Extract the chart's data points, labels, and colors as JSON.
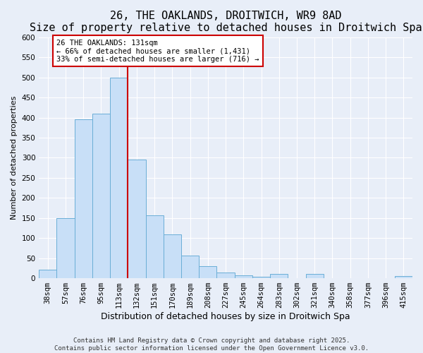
{
  "title": "26, THE OAKLANDS, DROITWICH, WR9 8AD",
  "subtitle": "Size of property relative to detached houses in Droitwich Spa",
  "xlabel": "Distribution of detached houses by size in Droitwich Spa",
  "ylabel": "Number of detached properties",
  "bar_labels": [
    "38sqm",
    "57sqm",
    "76sqm",
    "95sqm",
    "113sqm",
    "132sqm",
    "151sqm",
    "170sqm",
    "189sqm",
    "208sqm",
    "227sqm",
    "245sqm",
    "264sqm",
    "283sqm",
    "302sqm",
    "321sqm",
    "340sqm",
    "358sqm",
    "377sqm",
    "396sqm",
    "415sqm"
  ],
  "bar_values": [
    22,
    150,
    395,
    410,
    500,
    295,
    157,
    110,
    56,
    30,
    15,
    8,
    3,
    10,
    0,
    10,
    0,
    0,
    0,
    0,
    5
  ],
  "bar_color": "#c8dff7",
  "bar_edge_color": "#6aaed6",
  "vline_index": 4,
  "vline_color": "#cc0000",
  "annotation_title": "26 THE OAKLANDS: 131sqm",
  "annotation_line1": "← 66% of detached houses are smaller (1,431)",
  "annotation_line2": "33% of semi-detached houses are larger (716) →",
  "annotation_box_color": "#ffffff",
  "annotation_box_edge": "#cc0000",
  "ylim": [
    0,
    600
  ],
  "yticks": [
    0,
    50,
    100,
    150,
    200,
    250,
    300,
    350,
    400,
    450,
    500,
    550,
    600
  ],
  "background_color": "#e8eef8",
  "grid_color": "#ffffff",
  "footer_line1": "Contains HM Land Registry data © Crown copyright and database right 2025.",
  "footer_line2": "Contains public sector information licensed under the Open Government Licence v3.0.",
  "title_fontsize": 11,
  "subtitle_fontsize": 9.5,
  "xlabel_fontsize": 9,
  "ylabel_fontsize": 8,
  "tick_fontsize": 7.5,
  "footer_fontsize": 6.5
}
